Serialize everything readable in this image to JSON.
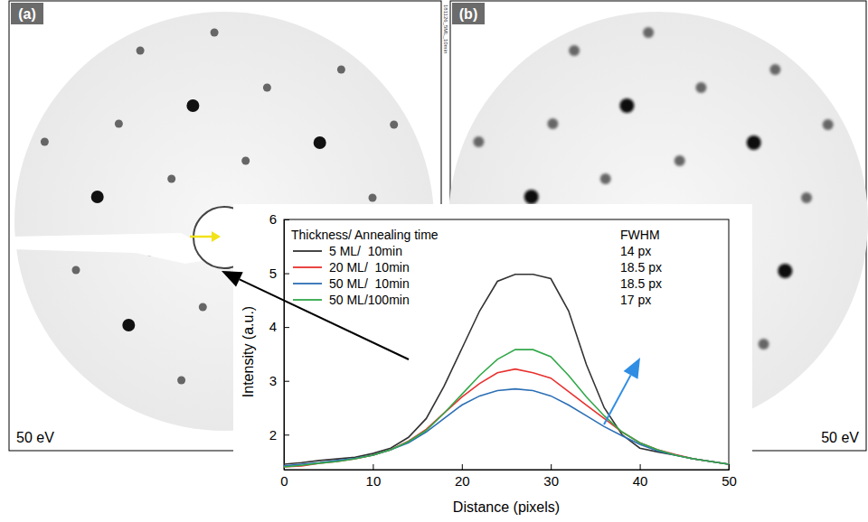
{
  "panels": [
    {
      "label": "(a)",
      "energy": "50 eV",
      "file_tag": "181126_5ML_10min"
    },
    {
      "label": "(b)",
      "energy": "50 eV"
    }
  ],
  "chart_data": {
    "type": "line",
    "x_label": "Distance (pixels)",
    "y_label": "Intensity (a.u.)",
    "legend_title": "Thickness/ Annealing time",
    "fwhm_title": "FWHM",
    "legend": "upper left",
    "x": [
      0,
      2,
      4,
      6,
      8,
      10,
      12,
      14,
      16,
      18,
      20,
      22,
      24,
      26,
      28,
      30,
      32,
      34,
      36,
      38,
      40,
      42,
      44,
      46,
      48,
      50
    ],
    "xlim": [
      0,
      50
    ],
    "xticks": [
      0,
      10,
      20,
      30,
      40,
      50
    ],
    "ylim": [
      1.35,
      6
    ],
    "yticks": [
      2,
      3,
      4,
      5,
      6
    ],
    "series": [
      {
        "name": "5 ML/  10min",
        "color": "#333333",
        "fwhm": "14 px",
        "values": [
          1.45,
          1.48,
          1.52,
          1.55,
          1.58,
          1.65,
          1.75,
          1.95,
          2.3,
          2.9,
          3.6,
          4.3,
          4.85,
          4.98,
          4.98,
          4.9,
          4.3,
          3.3,
          2.5,
          2.0,
          1.75,
          1.68,
          1.62,
          1.55,
          1.5,
          1.45
        ]
      },
      {
        "name": "20 ML/  10min",
        "color": "#e8312f",
        "fwhm": "18.5 px",
        "values": [
          1.4,
          1.42,
          1.47,
          1.5,
          1.55,
          1.62,
          1.72,
          1.88,
          2.1,
          2.4,
          2.7,
          2.95,
          3.15,
          3.22,
          3.15,
          3.05,
          2.8,
          2.55,
          2.3,
          2.05,
          1.85,
          1.72,
          1.63,
          1.55,
          1.5,
          1.45
        ]
      },
      {
        "name": "50 ML/  10min",
        "color": "#2c6fb5",
        "fwhm": "18.5 px",
        "values": [
          1.42,
          1.45,
          1.48,
          1.52,
          1.56,
          1.62,
          1.72,
          1.85,
          2.05,
          2.3,
          2.55,
          2.72,
          2.82,
          2.85,
          2.82,
          2.72,
          2.55,
          2.35,
          2.15,
          1.98,
          1.82,
          1.7,
          1.62,
          1.55,
          1.5,
          1.45
        ]
      },
      {
        "name": "50 ML/100min",
        "color": "#33a84a",
        "fwhm": "17 px",
        "values": [
          1.4,
          1.43,
          1.47,
          1.5,
          1.55,
          1.62,
          1.72,
          1.87,
          2.08,
          2.4,
          2.75,
          3.1,
          3.4,
          3.58,
          3.58,
          3.45,
          3.1,
          2.7,
          2.35,
          2.05,
          1.85,
          1.72,
          1.62,
          1.55,
          1.5,
          1.45
        ]
      }
    ]
  }
}
